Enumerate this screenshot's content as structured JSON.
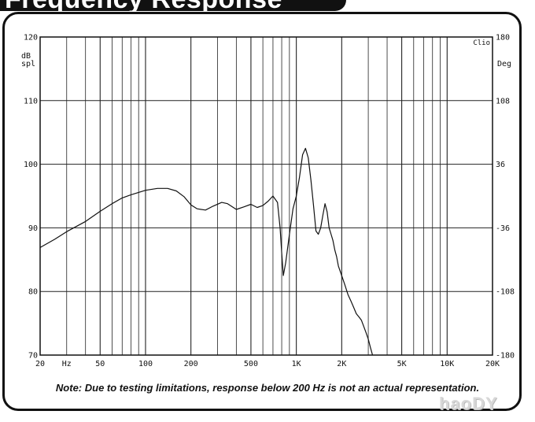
{
  "header": {
    "title": "Frequency Response"
  },
  "note": "Note:  Due to testing limitations, response below 200 Hz is not an actual representation.",
  "watermark": "haoDY",
  "colors": {
    "ink": "#111111",
    "grid": "#222222",
    "background": "#ffffff"
  },
  "chart_data": {
    "type": "line",
    "x_scale": "log",
    "xlim": [
      20,
      20000
    ],
    "ylim": [
      70,
      120
    ],
    "y_right_lim": [
      -180,
      180
    ],
    "grid": true,
    "x_tick_labels": [
      {
        "value": 20,
        "label": "20"
      },
      {
        "value": 30,
        "label": "Hz"
      },
      {
        "value": 50,
        "label": "50"
      },
      {
        "value": 100,
        "label": "100"
      },
      {
        "value": 200,
        "label": "200"
      },
      {
        "value": 500,
        "label": "500"
      },
      {
        "value": 1000,
        "label": "1K"
      },
      {
        "value": 2000,
        "label": "2K"
      },
      {
        "value": 5000,
        "label": "5K"
      },
      {
        "value": 10000,
        "label": "10K"
      },
      {
        "value": 20000,
        "label": "20K"
      }
    ],
    "y_ticks": [
      70,
      80,
      90,
      100,
      110,
      120
    ],
    "y_right_ticks": [
      -180,
      -108,
      -36,
      36,
      108,
      180
    ],
    "ylabel": [
      "dB",
      "spl"
    ],
    "y_right_label": "Deg",
    "brand": "Clio",
    "series": [
      {
        "x": [
          20,
          25,
          30,
          40,
          50,
          60,
          70,
          80,
          100,
          120,
          140,
          160,
          180,
          200,
          220,
          250,
          280,
          320,
          350,
          400,
          450,
          500,
          550,
          600,
          650,
          700,
          750,
          780,
          800,
          820,
          850,
          900,
          950,
          1000,
          1050,
          1100,
          1150,
          1200,
          1250,
          1300,
          1350,
          1400,
          1450,
          1500,
          1550,
          1600,
          1650,
          1700,
          1750,
          1800,
          1850,
          1900,
          2000,
          2100,
          2200,
          2300,
          2400,
          2500,
          2600,
          2700,
          2800,
          2900,
          3000,
          3100,
          3200
        ],
        "y": [
          86.9,
          88.2,
          89.4,
          91.0,
          92.6,
          93.8,
          94.7,
          95.2,
          95.9,
          96.2,
          96.2,
          95.8,
          94.9,
          93.6,
          93.0,
          92.8,
          93.4,
          94.0,
          93.8,
          92.9,
          93.3,
          93.7,
          93.2,
          93.5,
          94.2,
          95.0,
          94.0,
          90.0,
          86.0,
          82.5,
          84.5,
          89.0,
          93.0,
          95.0,
          98.0,
          101.5,
          102.5,
          101.0,
          97.5,
          93.5,
          89.5,
          89.0,
          90.0,
          92.0,
          93.8,
          92.5,
          90.0,
          89.0,
          88.0,
          86.5,
          85.5,
          84.0,
          82.5,
          81.0,
          79.5,
          78.5,
          77.5,
          76.5,
          76.0,
          75.5,
          74.5,
          73.5,
          72.5,
          71.2,
          70.0
        ]
      }
    ]
  }
}
